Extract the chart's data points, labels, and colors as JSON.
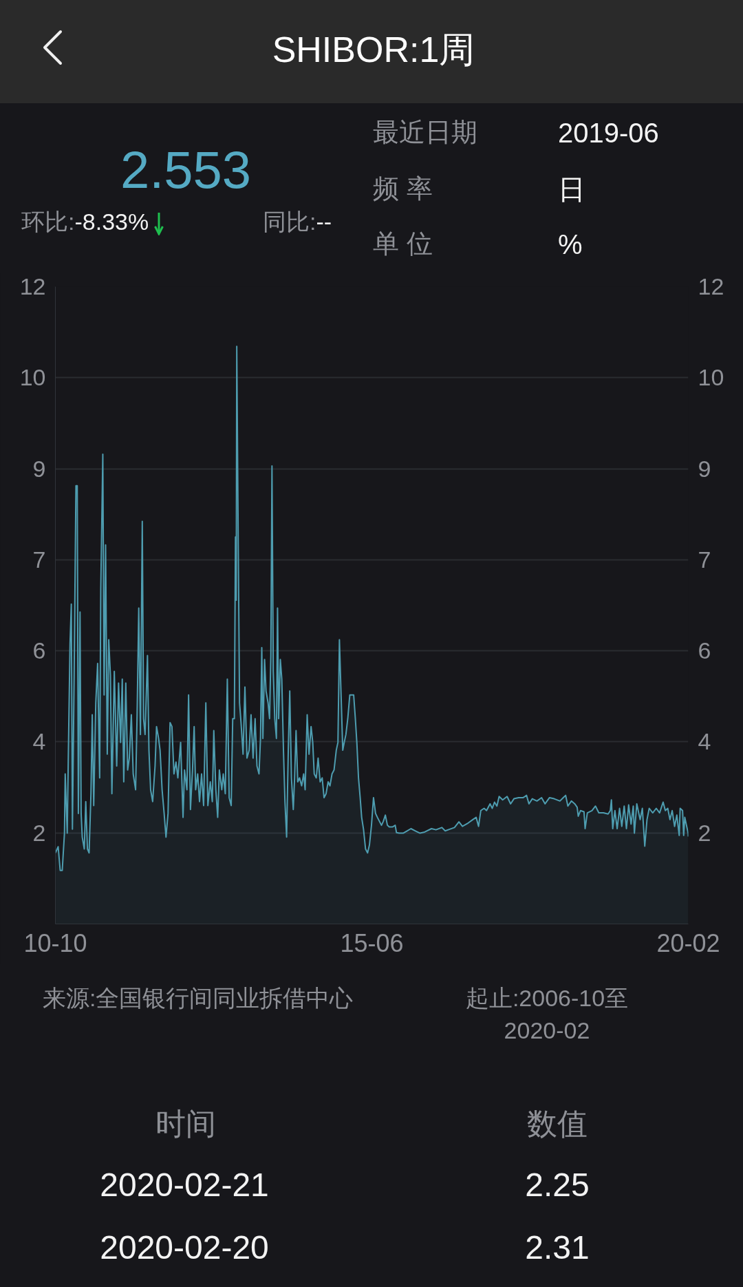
{
  "chart_data": {
    "type": "area",
    "title": "SHIBOR:1周",
    "annotations": [
      "2.553",
      "环比:-8.33%",
      "同比:--",
      "最近日期",
      "2019-06",
      "频 率",
      "日",
      "单 位",
      "%",
      "来源:全国银行间同业拆借中心",
      "起止:2006-10至2020-02",
      "时间",
      "数值",
      "2020-02-21",
      "2.25",
      "2020-02-20",
      "2.31"
    ],
    "xlim": [
      "2010-10-15",
      "2020-02-21"
    ],
    "xticks": [
      {
        "value": "2010-10-15",
        "label": "10-10"
      },
      {
        "value": "2015-06-19",
        "label": "15-06"
      },
      {
        "value": "2020-02-21",
        "label": "20-02"
      }
    ],
    "ylim": [
      0.7,
      12
    ],
    "yticks": [
      {
        "value": 2.31,
        "label": "2"
      },
      {
        "value": 3.93,
        "label": "4"
      },
      {
        "value": 5.54,
        "label": "6"
      },
      {
        "value": 7.16,
        "label": "7"
      },
      {
        "value": 8.77,
        "label": "9"
      },
      {
        "value": 10.39,
        "label": "10"
      },
      12
    ],
    "y2lim": [
      0.7,
      12
    ],
    "y2ticks": [
      {
        "value": 2.31,
        "label": "2"
      },
      {
        "value": 3.93,
        "label": "4"
      },
      {
        "value": 5.54,
        "label": "6"
      },
      {
        "value": 7.16,
        "label": "7"
      },
      {
        "value": 8.77,
        "label": "9"
      },
      {
        "value": 10.39,
        "label": "10"
      },
      12
    ],
    "grid": "y",
    "x": [
      "2010-10-15",
      "2010-10-30",
      "2010-11-10",
      "2010-11-21",
      "2010-12-03",
      "2010-12-07",
      "2010-12-18",
      "2010-12-24",
      "2011-01-02",
      "2011-01-09",
      "2011-01-15",
      "2011-01-24",
      "2011-02-03",
      "2011-02-10",
      "2011-02-16",
      "2011-02-25",
      "2011-03-03",
      "2011-03-09",
      "2011-03-20",
      "2011-03-28",
      "2011-04-06",
      "2011-04-15",
      "2011-04-25",
      "2011-05-02",
      "2011-05-10",
      "2011-05-21",
      "2011-05-31",
      "2011-06-11",
      "2011-06-17",
      "2011-06-28",
      "2011-07-05",
      "2011-07-13",
      "2011-07-22",
      "2011-07-30",
      "2011-08-08",
      "2011-08-16",
      "2011-08-29",
      "2011-09-11",
      "2011-09-21",
      "2011-10-02",
      "2011-10-11",
      "2011-10-19",
      "2011-10-30",
      "2011-11-09",
      "2011-11-18",
      "2011-11-29",
      "2011-12-09",
      "2011-12-22",
      "2011-12-30",
      "2012-01-08",
      "2012-01-17",
      "2012-01-27",
      "2012-02-03",
      "2012-02-11",
      "2012-02-24",
      "2012-03-03",
      "2012-03-12",
      "2012-03-23",
      "2012-04-05",
      "2012-04-13",
      "2012-04-24",
      "2012-05-02",
      "2012-05-13",
      "2012-05-24",
      "2012-06-03",
      "2012-06-14",
      "2012-06-25",
      "2012-07-05",
      "2012-07-16",
      "2012-07-27",
      "2012-08-06",
      "2012-08-21",
      "2012-09-03",
      "2012-09-11",
      "2012-09-24",
      "2012-10-03",
      "2012-10-13",
      "2012-10-24",
      "2012-11-02",
      "2012-11-10",
      "2012-11-21",
      "2012-12-01",
      "2012-12-12",
      "2012-12-23",
      "2013-01-04",
      "2013-01-15",
      "2013-01-28",
      "2013-02-08",
      "2013-02-16",
      "2013-02-27",
      "2013-03-09",
      "2013-03-18",
      "2013-03-31",
      "2013-04-08",
      "2013-04-19",
      "2013-04-30",
      "2013-05-10",
      "2013-05-21",
      "2013-05-29",
      "2013-06-07",
      "2013-06-13",
      "2013-06-17",
      "2013-06-20",
      "2013-06-28",
      "2013-07-05",
      "2013-07-13",
      "2013-07-24",
      "2013-08-03",
      "2013-08-14",
      "2013-08-26",
      "2013-09-05",
      "2013-09-16",
      "2013-09-27",
      "2013-10-07",
      "2013-10-18",
      "2013-10-26",
      "2013-11-02",
      "2013-11-08",
      "2013-11-17",
      "2013-11-25",
      "2013-12-06",
      "2013-12-14",
      "2013-12-21",
      "2013-12-27",
      "2014-01-03",
      "2014-01-11",
      "2014-01-20",
      "2014-01-26",
      "2014-02-01",
      "2014-02-10",
      "2014-02-18",
      "2014-02-27",
      "2014-03-07",
      "2014-03-16",
      "2014-03-25",
      "2014-04-02",
      "2014-04-11",
      "2014-04-21",
      "2014-04-28",
      "2014-05-06",
      "2014-05-15",
      "2014-05-25",
      "2014-06-05",
      "2014-06-16",
      "2014-06-24",
      "2014-07-05",
      "2014-07-15",
      "2014-07-26",
      "2014-08-04",
      "2014-08-12",
      "2014-08-23",
      "2014-09-02",
      "2014-09-13",
      "2014-09-24",
      "2014-10-04",
      "2014-10-15",
      "2014-10-26",
      "2014-11-05",
      "2014-11-16",
      "2014-11-27",
      "2014-12-09",
      "2014-12-18",
      "2014-12-26",
      "2015-01-04",
      "2015-01-13",
      "2015-01-21",
      "2015-01-30",
      "2015-02-09",
      "2015-02-20",
      "2015-03-03",
      "2015-03-13",
      "2015-03-22",
      "2015-03-30",
      "2015-04-08",
      "2015-04-17",
      "2015-04-25",
      "2015-05-05",
      "2015-05-16",
      "2015-05-27",
      "2015-06-06",
      "2015-06-17",
      "2015-06-28",
      "2015-07-09",
      "2015-07-19",
      "2015-07-30",
      "2015-08-10",
      "2015-08-20",
      "2015-08-31",
      "2015-09-11",
      "2015-09-21",
      "2015-10-08",
      "2015-10-23",
      "2015-10-30",
      "2015-11-13",
      "2015-12-05",
      "2015-12-26",
      "2016-01-16",
      "2016-02-09",
      "2016-03-05",
      "2016-03-30",
      "2016-05-06",
      "2016-05-30",
      "2016-07-01",
      "2016-07-19",
      "2016-08-12",
      "2016-09-07",
      "2016-10-01",
      "2016-10-20",
      "2016-11-20",
      "2016-12-15",
      "2017-01-02",
      "2017-01-15",
      "2017-01-27",
      "2017-02-14",
      "2017-02-27",
      "2017-03-18",
      "2017-03-30",
      "2017-04-11",
      "2017-04-24",
      "2017-05-06",
      "2017-05-25",
      "2017-06-18",
      "2017-07-07",
      "2017-07-25",
      "2017-08-19",
      "2017-09-13",
      "2017-10-01",
      "2017-10-14",
      "2017-11-01",
      "2017-11-26",
      "2017-12-21",
      "2018-01-09",
      "2018-02-02",
      "2018-02-27",
      "2018-03-30",
      "2018-04-17",
      "2018-04-30",
      "2018-05-12",
      "2018-05-31",
      "2018-06-18",
      "2018-07-01",
      "2018-07-07",
      "2018-07-19",
      "2018-08-07",
      "2018-08-13",
      "2018-08-25",
      "2018-09-19",
      "2018-10-08",
      "2018-10-26",
      "2018-11-20",
      "2018-12-15",
      "2018-12-27",
      "2019-01-02",
      "2019-01-09",
      "2019-01-21",
      "2019-02-02",
      "2019-02-15",
      "2019-02-27",
      "2019-03-12",
      "2019-03-24",
      "2019-04-05",
      "2019-04-18",
      "2019-04-30",
      "2019-05-06",
      "2019-05-19",
      "2019-06-06",
      "2019-06-18",
      "2019-07-01",
      "2019-07-13",
      "2019-07-25",
      "2019-08-13",
      "2019-09-01",
      "2019-09-19",
      "2019-10-08",
      "2019-10-20",
      "2019-11-02",
      "2019-11-14",
      "2019-11-26",
      "2019-12-09",
      "2019-12-21",
      "2020-01-03",
      "2020-01-08",
      "2020-01-21",
      "2020-01-27",
      "2020-02-02",
      "2020-02-20",
      "2020-02-21"
    ],
    "series": [
      {
        "color": "#4e9db0",
        "values": [
          1.96,
          2.07,
          1.65,
          1.65,
          2.31,
          3.36,
          2.31,
          3.71,
          5.67,
          6.37,
          2.38,
          5.04,
          8.47,
          8.47,
          2.66,
          6.23,
          2.66,
          2.24,
          2.03,
          2.87,
          2.03,
          1.96,
          3.01,
          4.41,
          2.8,
          4.62,
          5.32,
          3.29,
          6.64,
          9.03,
          4.76,
          7.42,
          3.71,
          5.74,
          5.11,
          3.01,
          5.18,
          3.5,
          4.97,
          3.92,
          5.04,
          3.22,
          4.97,
          3.43,
          3.64,
          4.41,
          3.36,
          3.08,
          4.41,
          6.3,
          4.06,
          7.84,
          4.34,
          4.06,
          5.46,
          3.78,
          3.08,
          2.87,
          3.5,
          4.2,
          3.99,
          3.78,
          3.08,
          2.66,
          2.24,
          2.66,
          4.27,
          4.2,
          3.36,
          3.57,
          3.29,
          3.92,
          2.59,
          3.43,
          3.08,
          4.76,
          2.73,
          3.43,
          4.2,
          3.08,
          3.36,
          2.87,
          3.36,
          2.8,
          4.62,
          2.8,
          3.22,
          2.87,
          4.13,
          3.08,
          2.59,
          3.43,
          3.08,
          3.36,
          3.01,
          5.04,
          2.94,
          2.8,
          4.34,
          4.34,
          7.56,
          6.44,
          10.94,
          7.42,
          4.62,
          4.27,
          3.71,
          4.9,
          3.64,
          3.78,
          4.41,
          3.64,
          4.34,
          3.5,
          3.36,
          3.99,
          5.6,
          3.99,
          5.39,
          4.83,
          4.62,
          4.34,
          5.46,
          8.82,
          5.18,
          4.34,
          3.99,
          6.3,
          4.34,
          5.39,
          5.04,
          3.78,
          2.87,
          2.24,
          3.78,
          4.83,
          3.29,
          2.73,
          3.29,
          4.13,
          3.22,
          3.29,
          3.15,
          3.36,
          3.08,
          4.41,
          3.71,
          4.2,
          3.92,
          3.36,
          3.29,
          3.64,
          3.22,
          3.29,
          2.94,
          3.01,
          3.22,
          3.15,
          3.36,
          3.43,
          3.78,
          3.92,
          5.74,
          4.76,
          3.78,
          3.92,
          4.06,
          4.34,
          4.76,
          4.76,
          4.76,
          4.34,
          3.92,
          3.29,
          2.94,
          2.59,
          2.38,
          2.03,
          1.96,
          2.1,
          2.45,
          2.94,
          2.66,
          2.59,
          2.52,
          2.45,
          2.52,
          2.63,
          2.45,
          2.42,
          2.42,
          2.45,
          2.32,
          2.31,
          2.31,
          2.35,
          2.39,
          2.35,
          2.31,
          2.33,
          2.39,
          2.37,
          2.41,
          2.35,
          2.38,
          2.41,
          2.51,
          2.43,
          2.49,
          2.55,
          2.59,
          2.43,
          2.71,
          2.75,
          2.71,
          2.83,
          2.75,
          2.86,
          2.79,
          2.96,
          2.9,
          2.96,
          2.83,
          2.92,
          2.94,
          2.94,
          2.98,
          2.83,
          2.92,
          2.88,
          2.94,
          2.83,
          2.94,
          2.92,
          2.88,
          2.94,
          2.98,
          2.79,
          2.88,
          2.83,
          2.77,
          2.61,
          2.71,
          2.69,
          2.39,
          2.67,
          2.71,
          2.79,
          2.67,
          2.67,
          2.65,
          2.71,
          2.9,
          2.39,
          2.71,
          2.39,
          2.75,
          2.43,
          2.79,
          2.39,
          2.81,
          2.47,
          2.79,
          2.31,
          2.83,
          2.55,
          2.75,
          2.08,
          2.55,
          2.75,
          2.67,
          2.75,
          2.67,
          2.86,
          2.71,
          2.75,
          2.55,
          2.71,
          2.43,
          2.63,
          2.27,
          2.75,
          2.71,
          2.27,
          2.59,
          2.31,
          2.25
        ]
      }
    ]
  }
}
